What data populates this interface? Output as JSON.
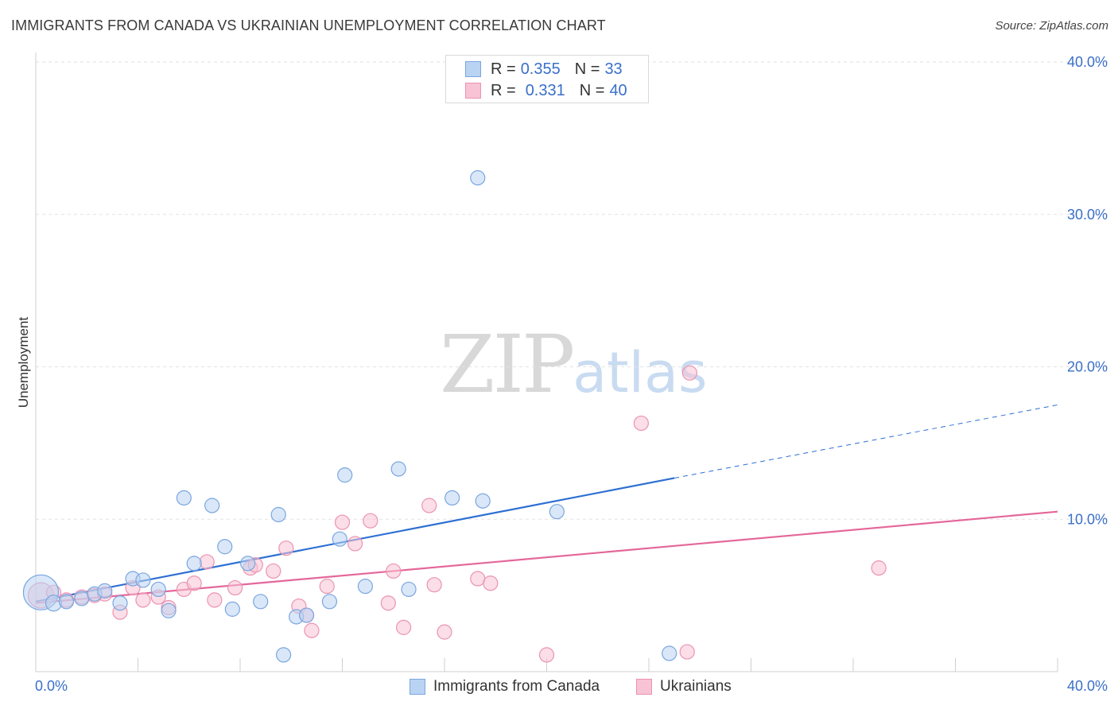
{
  "title": "IMMIGRANTS FROM CANADA VS UKRAINIAN UNEMPLOYMENT CORRELATION CHART",
  "source": "Source: ZipAtlas.com",
  "watermark": {
    "zip": "ZIP",
    "atlas": "atlas"
  },
  "colors": {
    "blue_fill": "#b9d3f3",
    "blue_stroke": "#7aa6e0",
    "blue_line": "#2d6fd2",
    "pink_fill": "#f8c3d4",
    "pink_stroke": "#eb93b2",
    "pink_line": "#e4679a",
    "axis_text": "#3a6fc9"
  },
  "legend": {
    "rows": [
      {
        "r_label": "R = ",
        "r_value": "0.355",
        "n_label": "N = ",
        "n_value": "33"
      },
      {
        "r_label": "R = ",
        "r_value": "0.331",
        "n_label": "N = ",
        "n_value": "40"
      }
    ]
  },
  "bottom_legend": [
    "Immigrants from Canada",
    "Ukrainians"
  ],
  "chart_data": {
    "type": "scatter",
    "title": "IMMIGRANTS FROM CANADA VS UKRAINIAN UNEMPLOYMENT CORRELATION CHART",
    "xlabel": "",
    "ylabel": "Unemployment",
    "xlim": [
      0,
      40
    ],
    "ylim": [
      0,
      40
    ],
    "x_tick_labels": [
      "0.0%",
      "40.0%"
    ],
    "y_ticks": [
      10,
      20,
      30,
      40
    ],
    "y_tick_labels": [
      "10.0%",
      "20.0%",
      "30.0%",
      "40.0%"
    ],
    "grid": true,
    "series": [
      {
        "name": "Immigrants from Canada",
        "color": "#7aa6e0",
        "trend": {
          "x0": 0,
          "y0": 4.6,
          "x1": 25,
          "y1": 12.7,
          "dashed_to_x": 40,
          "dashed_to_y": 17.5
        },
        "points": [
          [
            0.2,
            5.2,
            22
          ],
          [
            0.7,
            4.5,
            10
          ],
          [
            1.2,
            4.6,
            9
          ],
          [
            1.8,
            4.8,
            9
          ],
          [
            2.3,
            5.1,
            9
          ],
          [
            2.7,
            5.3,
            9
          ],
          [
            3.3,
            4.5,
            9
          ],
          [
            3.8,
            6.1,
            9
          ],
          [
            4.2,
            6.0,
            9
          ],
          [
            4.8,
            5.4,
            9
          ],
          [
            5.2,
            4.0,
            9
          ],
          [
            5.8,
            11.4,
            9
          ],
          [
            6.2,
            7.1,
            9
          ],
          [
            6.9,
            10.9,
            9
          ],
          [
            7.4,
            8.2,
            9
          ],
          [
            7.7,
            4.1,
            9
          ],
          [
            8.3,
            7.1,
            9
          ],
          [
            8.8,
            4.6,
            9
          ],
          [
            9.5,
            10.3,
            9
          ],
          [
            9.7,
            1.1,
            9
          ],
          [
            10.2,
            3.6,
            9
          ],
          [
            10.6,
            3.7,
            9
          ],
          [
            11.5,
            4.6,
            9
          ],
          [
            11.9,
            8.7,
            9
          ],
          [
            12.1,
            12.9,
            9
          ],
          [
            12.9,
            5.6,
            9
          ],
          [
            14.2,
            13.3,
            9
          ],
          [
            14.6,
            5.4,
            9
          ],
          [
            16.3,
            11.4,
            9
          ],
          [
            17.3,
            32.4,
            9
          ],
          [
            17.5,
            11.2,
            9
          ],
          [
            20.4,
            10.5,
            9
          ],
          [
            24.8,
            1.2,
            9
          ]
        ]
      },
      {
        "name": "Ukrainians",
        "color": "#eb93b2",
        "trend": {
          "x0": 0,
          "y0": 4.5,
          "x1": 40,
          "y1": 10.5
        },
        "points": [
          [
            0.2,
            5.0,
            16
          ],
          [
            0.7,
            5.2,
            9
          ],
          [
            1.2,
            4.7,
            9
          ],
          [
            1.8,
            4.9,
            9
          ],
          [
            2.3,
            5.0,
            9
          ],
          [
            2.7,
            5.1,
            9
          ],
          [
            3.3,
            3.9,
            9
          ],
          [
            3.8,
            5.5,
            9
          ],
          [
            4.2,
            4.7,
            9
          ],
          [
            4.8,
            4.9,
            9
          ],
          [
            5.2,
            4.2,
            9
          ],
          [
            5.8,
            5.4,
            9
          ],
          [
            6.2,
            5.8,
            9
          ],
          [
            6.7,
            7.2,
            9
          ],
          [
            7.0,
            4.7,
            9
          ],
          [
            7.8,
            5.5,
            9
          ],
          [
            8.4,
            6.8,
            9
          ],
          [
            8.6,
            7.0,
            9
          ],
          [
            9.3,
            6.6,
            9
          ],
          [
            9.8,
            8.1,
            9
          ],
          [
            10.3,
            4.3,
            9
          ],
          [
            10.6,
            3.7,
            9
          ],
          [
            10.8,
            2.7,
            9
          ],
          [
            11.4,
            5.6,
            9
          ],
          [
            12.0,
            9.8,
            9
          ],
          [
            12.5,
            8.4,
            9
          ],
          [
            13.1,
            9.9,
            9
          ],
          [
            13.8,
            4.5,
            9
          ],
          [
            14.0,
            6.6,
            9
          ],
          [
            14.4,
            2.9,
            9
          ],
          [
            15.4,
            10.9,
            9
          ],
          [
            15.6,
            5.7,
            9
          ],
          [
            16.0,
            2.6,
            9
          ],
          [
            17.3,
            6.1,
            9
          ],
          [
            17.8,
            5.8,
            9
          ],
          [
            20.0,
            1.1,
            9
          ],
          [
            23.7,
            16.3,
            9
          ],
          [
            25.5,
            1.3,
            9
          ],
          [
            25.6,
            19.6,
            9
          ],
          [
            33.0,
            6.8,
            9
          ]
        ]
      }
    ]
  }
}
